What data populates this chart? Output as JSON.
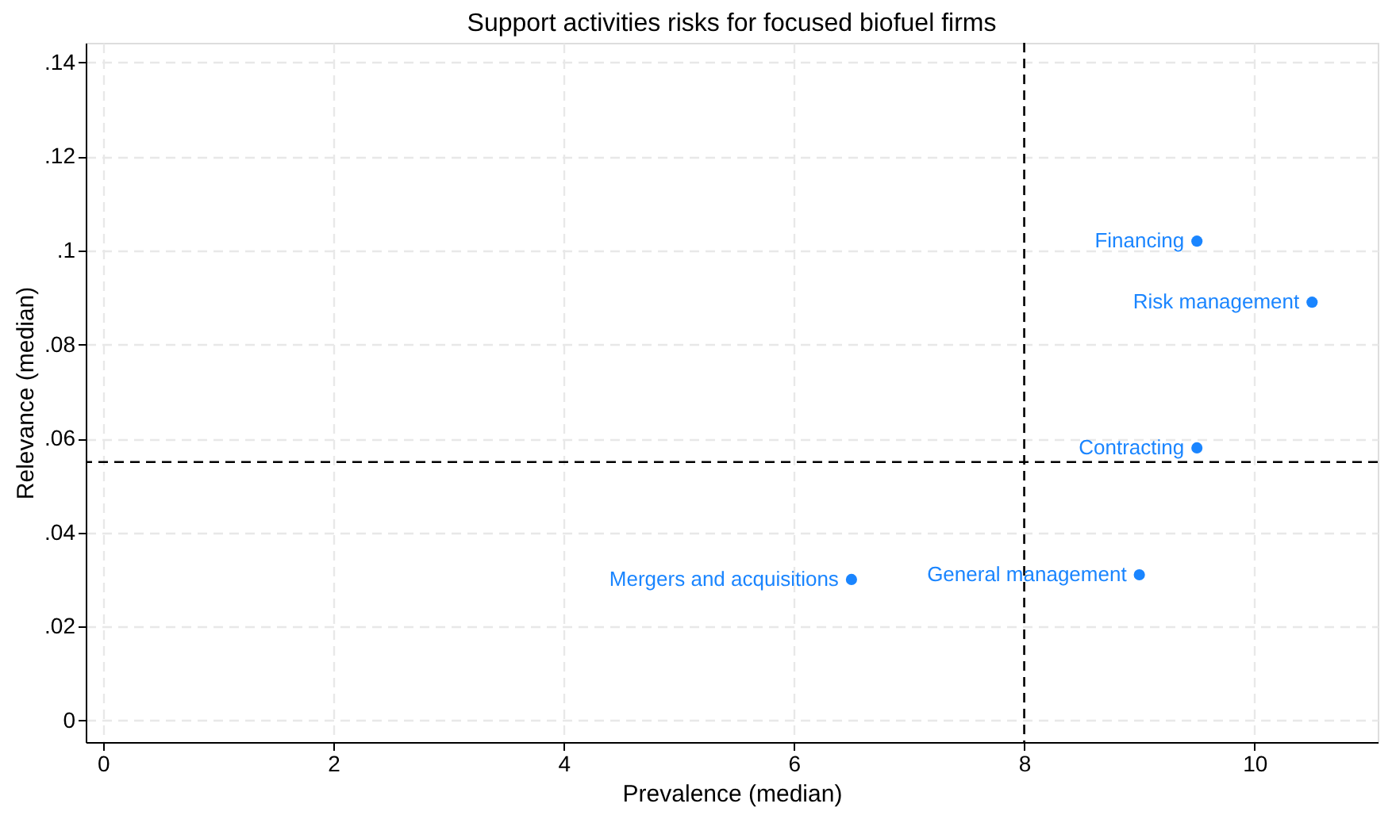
{
  "chart_data": {
    "type": "scatter",
    "title": "Support activities risks for focused biofuel firms",
    "xlabel": "Prevalence (median)",
    "ylabel": "Relevance (median)",
    "x": [
      9.5,
      10.5,
      9.5,
      9.0,
      6.5
    ],
    "series": [
      {
        "color": "#1a85ff",
        "values": [
          0.102,
          0.089,
          0.058,
          0.031,
          0.03
        ]
      }
    ],
    "annotations": [
      {
        "text": "Financing",
        "x": 9.5,
        "y": 0.102
      },
      {
        "text": "Risk management",
        "x": 10.5,
        "y": 0.089
      },
      {
        "text": "Contracting",
        "x": 9.5,
        "y": 0.058
      },
      {
        "text": "General management",
        "x": 9.0,
        "y": 0.031
      },
      {
        "text": "Mergers and acquisitions",
        "x": 6.5,
        "y": 0.03
      }
    ],
    "ref_lines": [
      {
        "axis": "x",
        "value": 8,
        "color": "#000000",
        "line_style": "dashed"
      },
      {
        "axis": "y",
        "value": 0.055,
        "color": "#000000",
        "line_style": "dashed"
      }
    ],
    "xlim": [
      -0.15,
      11.07
    ],
    "xticks": [
      0,
      2,
      4,
      6,
      8,
      10
    ],
    "ylim": [
      -0.0046,
      0.1442
    ],
    "yticks": [
      0,
      {
        "value": 0.02,
        "label": ".02"
      },
      {
        "value": 0.04,
        "label": ".04"
      },
      {
        "value": 0.06,
        "label": ".06"
      },
      {
        "value": 0.08,
        "label": ".08"
      },
      {
        "value": 0.1,
        "label": ".1"
      },
      {
        "value": 0.12,
        "label": ".12"
      },
      {
        "value": 0.14,
        "label": ".14"
      }
    ],
    "grid": true,
    "marker": "circle"
  }
}
